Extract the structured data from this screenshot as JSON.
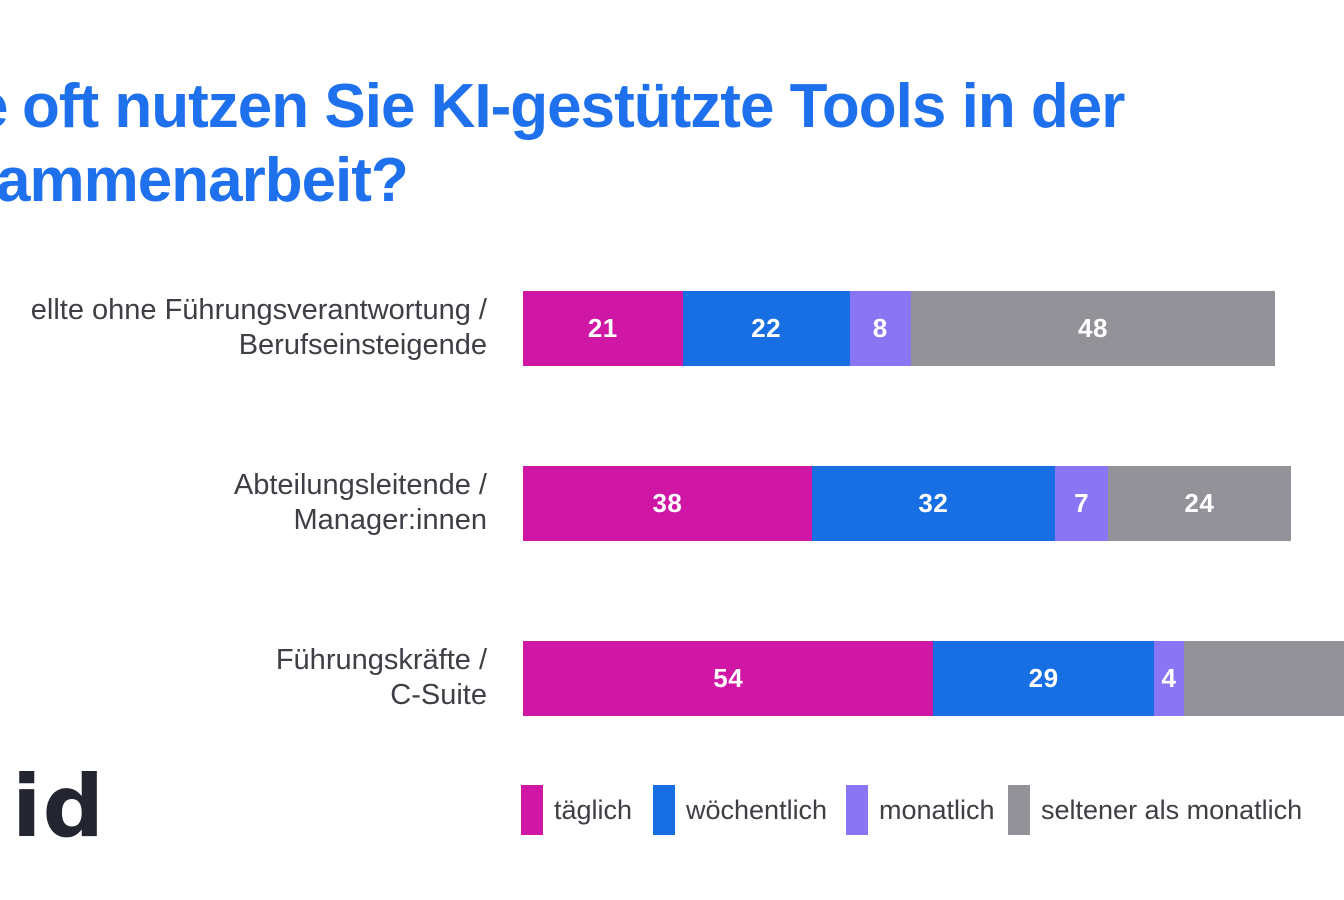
{
  "colors": {
    "background": "#ffffff",
    "title_blue": "#1e70ec",
    "text_gray": "#3e3f45",
    "logo_dark": "#232630",
    "bar_white_label": "#ffffff"
  },
  "title": {
    "clipped_prefix": "e",
    "line1": "oft nutzen Sie KI-gestützte Tools in der",
    "line2": "ammenarbeit?"
  },
  "logo": {
    "text": "id"
  },
  "chart_data": {
    "type": "bar",
    "variant": "horizontal-stacked",
    "unit": "percent",
    "grid": false,
    "legend_position": "bottom",
    "value_labels_shown": true,
    "categories": [
      {
        "lines": [
          "ellte ohne Führungsverantwortung /",
          "Berufseinsteigende"
        ]
      },
      {
        "lines": [
          "Abteilungsleitende /",
          "Manager:innen"
        ]
      },
      {
        "lines": [
          "Führungskräfte /",
          "C-Suite"
        ]
      }
    ],
    "series": [
      {
        "name": "täglich",
        "color": "#d016a4",
        "values": [
          21,
          38,
          54
        ]
      },
      {
        "name": "wöchentlich",
        "color": "#176fe3",
        "values": [
          22,
          32,
          29
        ]
      },
      {
        "name": "monatlich",
        "color": "#8a76f4",
        "values": [
          8,
          7,
          4
        ]
      },
      {
        "name": "seltener als monatlich",
        "color": "#949299",
        "values": [
          48,
          24,
          null
        ]
      }
    ]
  }
}
